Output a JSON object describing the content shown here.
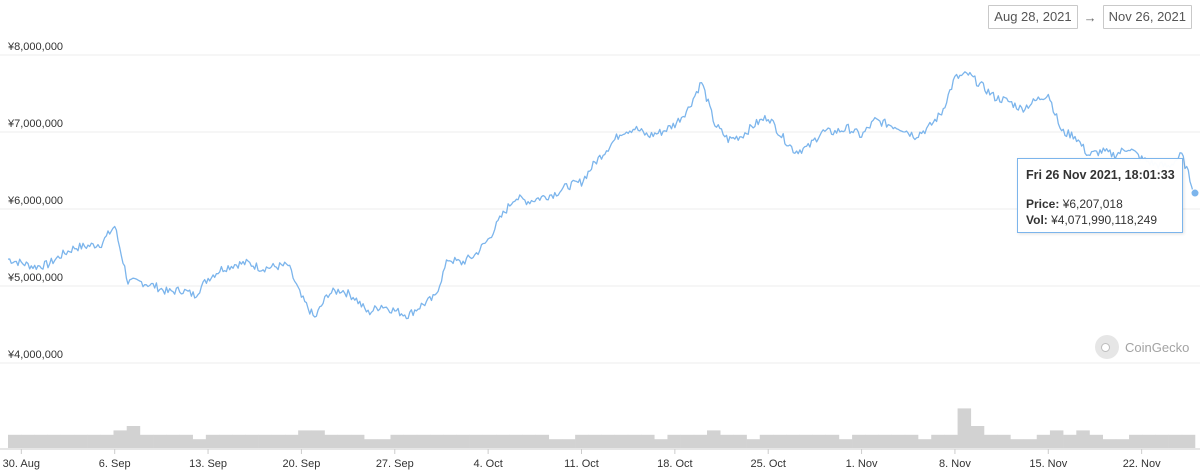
{
  "date_range": {
    "from": "Aug 28, 2021",
    "arrow": "→",
    "to": "Nov 26, 2021"
  },
  "tooltip": {
    "title": "Fri 26 Nov 2021, 18:01:33",
    "price_label": "Price:",
    "price_value": "¥6,207,018",
    "vol_label": "Vol:",
    "vol_value": "¥4,071,990,118,249"
  },
  "watermark": "CoinGecko",
  "colors": {
    "line": "#7cb5ec",
    "volume": "#d2d2d2",
    "grid": "#ececec",
    "axis_text": "#333333"
  },
  "chart_data": {
    "type": "line",
    "title": "",
    "xlabel": "",
    "ylabel": "",
    "ylim": [
      3500000,
      8000000
    ],
    "y_ticks": [
      "¥8,000,000",
      "¥7,000,000",
      "¥6,000,000",
      "¥5,000,000",
      "¥4,000,000"
    ],
    "y_tick_values": [
      8000000,
      7000000,
      6000000,
      5000000,
      4000000
    ],
    "x_range": [
      "2021-08-29",
      "2021-11-26"
    ],
    "x_ticks": [
      {
        "date": "2021-08-30",
        "label": "30. Aug"
      },
      {
        "date": "2021-09-06",
        "label": "6. Sep"
      },
      {
        "date": "2021-09-13",
        "label": "13. Sep"
      },
      {
        "date": "2021-09-20",
        "label": "20. Sep"
      },
      {
        "date": "2021-09-27",
        "label": "27. Sep"
      },
      {
        "date": "2021-10-04",
        "label": "4. Oct"
      },
      {
        "date": "2021-10-11",
        "label": "11. Oct"
      },
      {
        "date": "2021-10-18",
        "label": "18. Oct"
      },
      {
        "date": "2021-10-25",
        "label": "25. Oct"
      },
      {
        "date": "2021-11-01",
        "label": "1. Nov"
      },
      {
        "date": "2021-11-08",
        "label": "8. Nov"
      },
      {
        "date": "2021-11-15",
        "label": "15. Nov"
      },
      {
        "date": "2021-11-22",
        "label": "22. Nov"
      }
    ],
    "series": [
      {
        "x": [
          "2021-08-29",
          "2021-08-30",
          "2021-08-31",
          "2021-09-01",
          "2021-09-02",
          "2021-09-03",
          "2021-09-04",
          "2021-09-05",
          "2021-09-06",
          "2021-09-07",
          "2021-09-08",
          "2021-09-09",
          "2021-09-10",
          "2021-09-11",
          "2021-09-12",
          "2021-09-13",
          "2021-09-14",
          "2021-09-15",
          "2021-09-16",
          "2021-09-17",
          "2021-09-18",
          "2021-09-19",
          "2021-09-20",
          "2021-09-21",
          "2021-09-22",
          "2021-09-23",
          "2021-09-24",
          "2021-09-25",
          "2021-09-26",
          "2021-09-27",
          "2021-09-28",
          "2021-09-29",
          "2021-09-30",
          "2021-10-01",
          "2021-10-02",
          "2021-10-03",
          "2021-10-04",
          "2021-10-05",
          "2021-10-06",
          "2021-10-07",
          "2021-10-08",
          "2021-10-09",
          "2021-10-10",
          "2021-10-11",
          "2021-10-12",
          "2021-10-13",
          "2021-10-14",
          "2021-10-15",
          "2021-10-16",
          "2021-10-17",
          "2021-10-18",
          "2021-10-19",
          "2021-10-20",
          "2021-10-21",
          "2021-10-22",
          "2021-10-23",
          "2021-10-24",
          "2021-10-25",
          "2021-10-26",
          "2021-10-27",
          "2021-10-28",
          "2021-10-29",
          "2021-10-30",
          "2021-10-31",
          "2021-11-01",
          "2021-11-02",
          "2021-11-03",
          "2021-11-04",
          "2021-11-05",
          "2021-11-06",
          "2021-11-07",
          "2021-11-08",
          "2021-11-09",
          "2021-11-10",
          "2021-11-11",
          "2021-11-12",
          "2021-11-13",
          "2021-11-14",
          "2021-11-15",
          "2021-11-16",
          "2021-11-17",
          "2021-11-18",
          "2021-11-19",
          "2021-11-20",
          "2021-11-21",
          "2021-11-22",
          "2021-11-23",
          "2021-11-24",
          "2021-11-25",
          "2021-11-26"
        ],
        "values": [
          5350000,
          5300000,
          5250000,
          5280000,
          5400000,
          5500000,
          5520000,
          5550000,
          5780000,
          5050000,
          5050000,
          5000000,
          4920000,
          4950000,
          4880000,
          5100000,
          5220000,
          5280000,
          5300000,
          5230000,
          5250000,
          5270000,
          4850000,
          4580000,
          4900000,
          4950000,
          4850000,
          4650000,
          4750000,
          4680000,
          4620000,
          4750000,
          4850000,
          5350000,
          5300000,
          5400000,
          5600000,
          5900000,
          6150000,
          6100000,
          6150000,
          6200000,
          6300000,
          6350000,
          6600000,
          6800000,
          7000000,
          7050000,
          6950000,
          7000000,
          7100000,
          7300000,
          7650000,
          7100000,
          6900000,
          6950000,
          7100000,
          7200000,
          6950000,
          6750000,
          6800000,
          7000000,
          7000000,
          7050000,
          6950000,
          7150000,
          7100000,
          7050000,
          6950000,
          7050000,
          7250000,
          7700000,
          7750000,
          7600000,
          7450000,
          7400000,
          7300000,
          7400000,
          7500000,
          7000000,
          6950000,
          6700000,
          6750000,
          6700000,
          6800000,
          6650000,
          6580000,
          6550000,
          6700000,
          6207018
        ]
      }
    ],
    "volume": {
      "values": [
        3,
        3,
        3,
        3,
        3,
        3,
        3,
        3,
        4,
        5,
        3,
        3,
        3,
        3,
        2,
        3,
        3,
        3,
        3,
        3,
        3,
        3,
        4,
        4,
        3,
        3,
        3,
        2,
        2,
        3,
        3,
        3,
        3,
        3,
        3,
        3,
        3,
        3,
        3,
        3,
        3,
        2,
        2,
        3,
        3,
        3,
        3,
        3,
        3,
        2,
        3,
        3,
        3,
        4,
        3,
        3,
        2,
        3,
        3,
        3,
        3,
        3,
        3,
        2,
        3,
        3,
        3,
        3,
        3,
        2,
        3,
        3,
        9,
        5,
        3,
        3,
        2,
        2,
        3,
        4,
        3,
        4,
        3,
        2,
        2,
        3,
        3,
        3,
        3,
        3
      ]
    }
  }
}
